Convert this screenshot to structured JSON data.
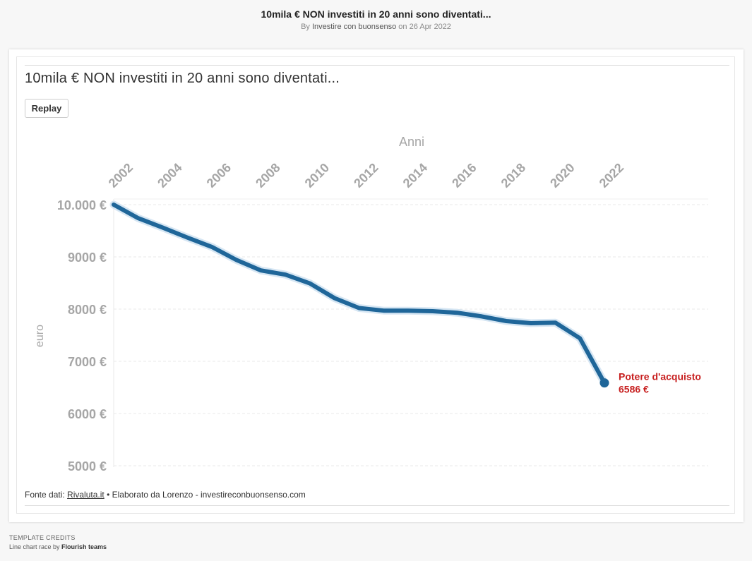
{
  "header": {
    "title": "10mila € NON investiti in 20 anni sono diventati...",
    "by": "By",
    "author": "Investire con buonsenso",
    "on_date": "on 26 Apr 2022"
  },
  "chart": {
    "title": "10mila € NON investiti in 20 anni sono diventati...",
    "replay_label": "Replay",
    "source_prefix": "Fonte dati: ",
    "source_link": "Rivaluta.it",
    "source_suffix": " • Elaborato da Lorenzo - investireconbuonsenso.com"
  },
  "credits": {
    "heading": "Template credits",
    "prefix": "Line chart race by ",
    "team": "Flourish teams"
  },
  "colors": {
    "line": "#1f6699",
    "line_halo": "#d6e6f3",
    "annotation": "#c71f1f",
    "axis_text": "#a6a6a6",
    "grid": "#e8e8e8"
  },
  "chart_data": {
    "type": "line",
    "title": "10mila € NON investiti in 20 anni sono diventati...",
    "xlabel": "Anni",
    "ylabel": "euro",
    "x_ticks": [
      "2002",
      "2004",
      "2006",
      "2008",
      "2010",
      "2012",
      "2014",
      "2016",
      "2018",
      "2020",
      "2022"
    ],
    "y_ticks": [
      "10.000 €",
      "9000 €",
      "8000 €",
      "7000 €",
      "6000 €",
      "5000 €"
    ],
    "y_tick_values": [
      10000,
      9000,
      8000,
      7000,
      6000,
      5000
    ],
    "xlim": [
      2002,
      2022
    ],
    "ylim": [
      5000,
      10000
    ],
    "grid": true,
    "x_axis_position": "top",
    "series": [
      {
        "x": [
          2002,
          2003,
          2004,
          2005,
          2006,
          2007,
          2008,
          2009,
          2010,
          2011,
          2012,
          2013,
          2014,
          2015,
          2016,
          2017,
          2018,
          2019,
          2020,
          2021,
          2022
        ],
        "values": [
          10000,
          9740,
          9560,
          9370,
          9190,
          8940,
          8740,
          8660,
          8490,
          8210,
          8020,
          7970,
          7970,
          7960,
          7930,
          7860,
          7770,
          7730,
          7740,
          7440,
          6586
        ]
      }
    ],
    "end_annotation": {
      "label": "Potere d'acquisto",
      "value_label": "6586 €"
    }
  }
}
